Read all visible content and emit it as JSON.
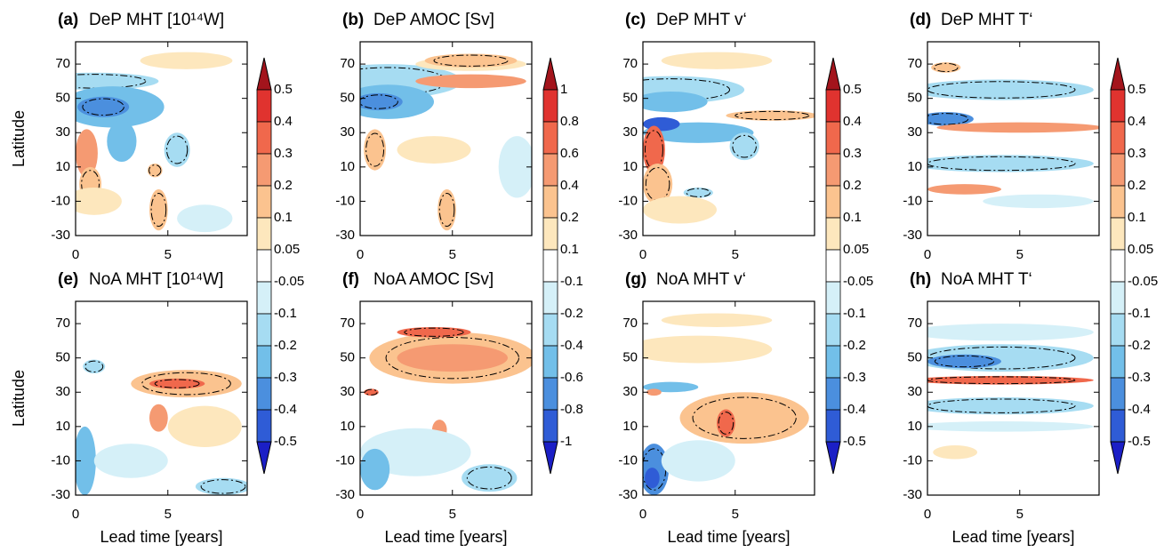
{
  "chart_data": [
    {
      "type": "contour",
      "panel": "(a)",
      "title": "DeP MHT [10¹⁴W]",
      "ylabel": "Latitude",
      "xlim": [
        0,
        9.3
      ],
      "ylim": [
        -30,
        83
      ],
      "xticks": [
        0,
        5
      ],
      "yticks": [
        -30,
        -10,
        10,
        30,
        50,
        70
      ]
    },
    {
      "type": "contour",
      "panel": "(b)",
      "title": "DeP AMOC [Sv]",
      "xlim": [
        0,
        9.3
      ],
      "ylim": [
        -30,
        83
      ],
      "xticks": [
        0,
        5
      ],
      "yticks": [
        -30,
        -10,
        10,
        30,
        50,
        70
      ]
    },
    {
      "type": "contour",
      "panel": "(c)",
      "title": "DeP MHT v‘",
      "xlim": [
        0,
        9.3
      ],
      "ylim": [
        -30,
        83
      ],
      "xticks": [
        0,
        5
      ],
      "yticks": [
        -30,
        -10,
        10,
        30,
        50,
        70
      ]
    },
    {
      "type": "contour",
      "panel": "(d)",
      "title": "DeP MHT T‘",
      "xlim": [
        0,
        9.3
      ],
      "ylim": [
        -30,
        83
      ],
      "xticks": [
        0,
        5
      ],
      "yticks": [
        -30,
        -10,
        10,
        30,
        50,
        70
      ]
    },
    {
      "type": "contour",
      "panel": "(e)",
      "title": "NoA MHT [10¹⁴W]",
      "ylabel": "Latitude",
      "xlabel": "Lead time [years]",
      "xlim": [
        0,
        9.3
      ],
      "ylim": [
        -30,
        83
      ],
      "xticks": [
        0,
        5
      ],
      "yticks": [
        -30,
        -10,
        10,
        30,
        50,
        70
      ]
    },
    {
      "type": "contour",
      "panel": "(f)",
      "title": "NoA AMOC [Sv]",
      "xlabel": "Lead time [years]",
      "xlim": [
        0,
        9.3
      ],
      "ylim": [
        -30,
        83
      ],
      "xticks": [
        0,
        5
      ],
      "yticks": [
        -30,
        -10,
        10,
        30,
        50,
        70
      ]
    },
    {
      "type": "contour",
      "panel": "(g)",
      "title": "NoA MHT v‘",
      "xlabel": "Lead time [years]",
      "xlim": [
        0,
        9.3
      ],
      "ylim": [
        -30,
        83
      ],
      "xticks": [
        0,
        5
      ],
      "yticks": [
        -30,
        -10,
        10,
        30,
        50,
        70
      ]
    },
    {
      "type": "contour",
      "panel": "(h)",
      "title": "NoA MHT T‘",
      "xlabel": "Lead time [years]",
      "xlim": [
        0,
        9.3
      ],
      "ylim": [
        -30,
        83
      ],
      "xticks": [
        0,
        5
      ],
      "yticks": [
        -30,
        -10,
        10,
        30,
        50,
        70
      ]
    }
  ],
  "colorbars": [
    {
      "levels": [
        0.5,
        0.4,
        0.3,
        0.2,
        0.1,
        0.05,
        -0.05,
        -0.1,
        -0.2,
        -0.3,
        -0.4,
        -0.5
      ]
    },
    {
      "levels": [
        1,
        0.8,
        0.6,
        0.4,
        0.2,
        0.1,
        -0.1,
        -0.2,
        -0.4,
        -0.6,
        -0.8,
        -1
      ]
    },
    {
      "levels": [
        0.5,
        0.4,
        0.3,
        0.2,
        0.1,
        0.05,
        -0.05,
        -0.1,
        -0.2,
        -0.3,
        -0.4,
        -0.5
      ]
    },
    {
      "levels": [
        0.5,
        0.4,
        0.3,
        0.2,
        0.1,
        0.05,
        -0.05,
        -0.1,
        -0.2,
        -0.3,
        -0.4,
        -0.5
      ]
    }
  ],
  "colors": [
    "#a3141c",
    "#e0332f",
    "#f0684c",
    "#f59a72",
    "#fbc38f",
    "#fde7bd",
    "#ffffff",
    "#d5f0f8",
    "#a6dcf2",
    "#72bfe9",
    "#4b8fde",
    "#2f5cd6",
    "#1b1fc6"
  ]
}
